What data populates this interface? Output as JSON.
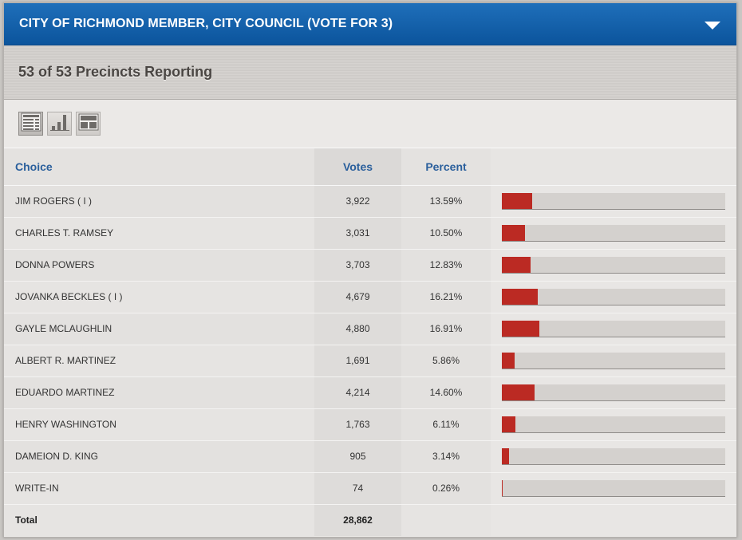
{
  "header": {
    "title": "CITY OF RICHMOND MEMBER, CITY COUNCIL (VOTE FOR 3)",
    "toggle_icon": "chevron-down-icon"
  },
  "reporting": {
    "text": "53 of 53 Precincts Reporting"
  },
  "toolbar": {
    "views": [
      {
        "icon": "table-view-icon",
        "active": true
      },
      {
        "icon": "bar-chart-view-icon",
        "active": false
      },
      {
        "icon": "grid-view-icon",
        "active": false
      }
    ]
  },
  "table": {
    "columns": {
      "choice": "Choice",
      "votes": "Votes",
      "percent": "Percent"
    },
    "rows": [
      {
        "choice": "JIM ROGERS ( I )",
        "votes": "3,922",
        "percent": "13.59%",
        "share": 13.59
      },
      {
        "choice": "CHARLES T. RAMSEY",
        "votes": "3,031",
        "percent": "10.50%",
        "share": 10.5
      },
      {
        "choice": "DONNA POWERS",
        "votes": "3,703",
        "percent": "12.83%",
        "share": 12.83
      },
      {
        "choice": "JOVANKA BECKLES ( I )",
        "votes": "4,679",
        "percent": "16.21%",
        "share": 16.21
      },
      {
        "choice": "GAYLE MCLAUGHLIN",
        "votes": "4,880",
        "percent": "16.91%",
        "share": 16.91
      },
      {
        "choice": "ALBERT R. MARTINEZ",
        "votes": "1,691",
        "percent": "5.86%",
        "share": 5.86
      },
      {
        "choice": "EDUARDO MARTINEZ",
        "votes": "4,214",
        "percent": "14.60%",
        "share": 14.6
      },
      {
        "choice": "HENRY WASHINGTON",
        "votes": "1,763",
        "percent": "6.11%",
        "share": 6.11
      },
      {
        "choice": "DAMEION D. KING",
        "votes": "905",
        "percent": "3.14%",
        "share": 3.14
      },
      {
        "choice": "WRITE-IN",
        "votes": "74",
        "percent": "0.26%",
        "share": 0.26
      }
    ],
    "total": {
      "label": "Total",
      "votes": "28,862"
    }
  },
  "colors": {
    "header_blue": "#0b549c",
    "bar_red": "#bb2a23",
    "column_header_text": "#2a5f9c"
  }
}
